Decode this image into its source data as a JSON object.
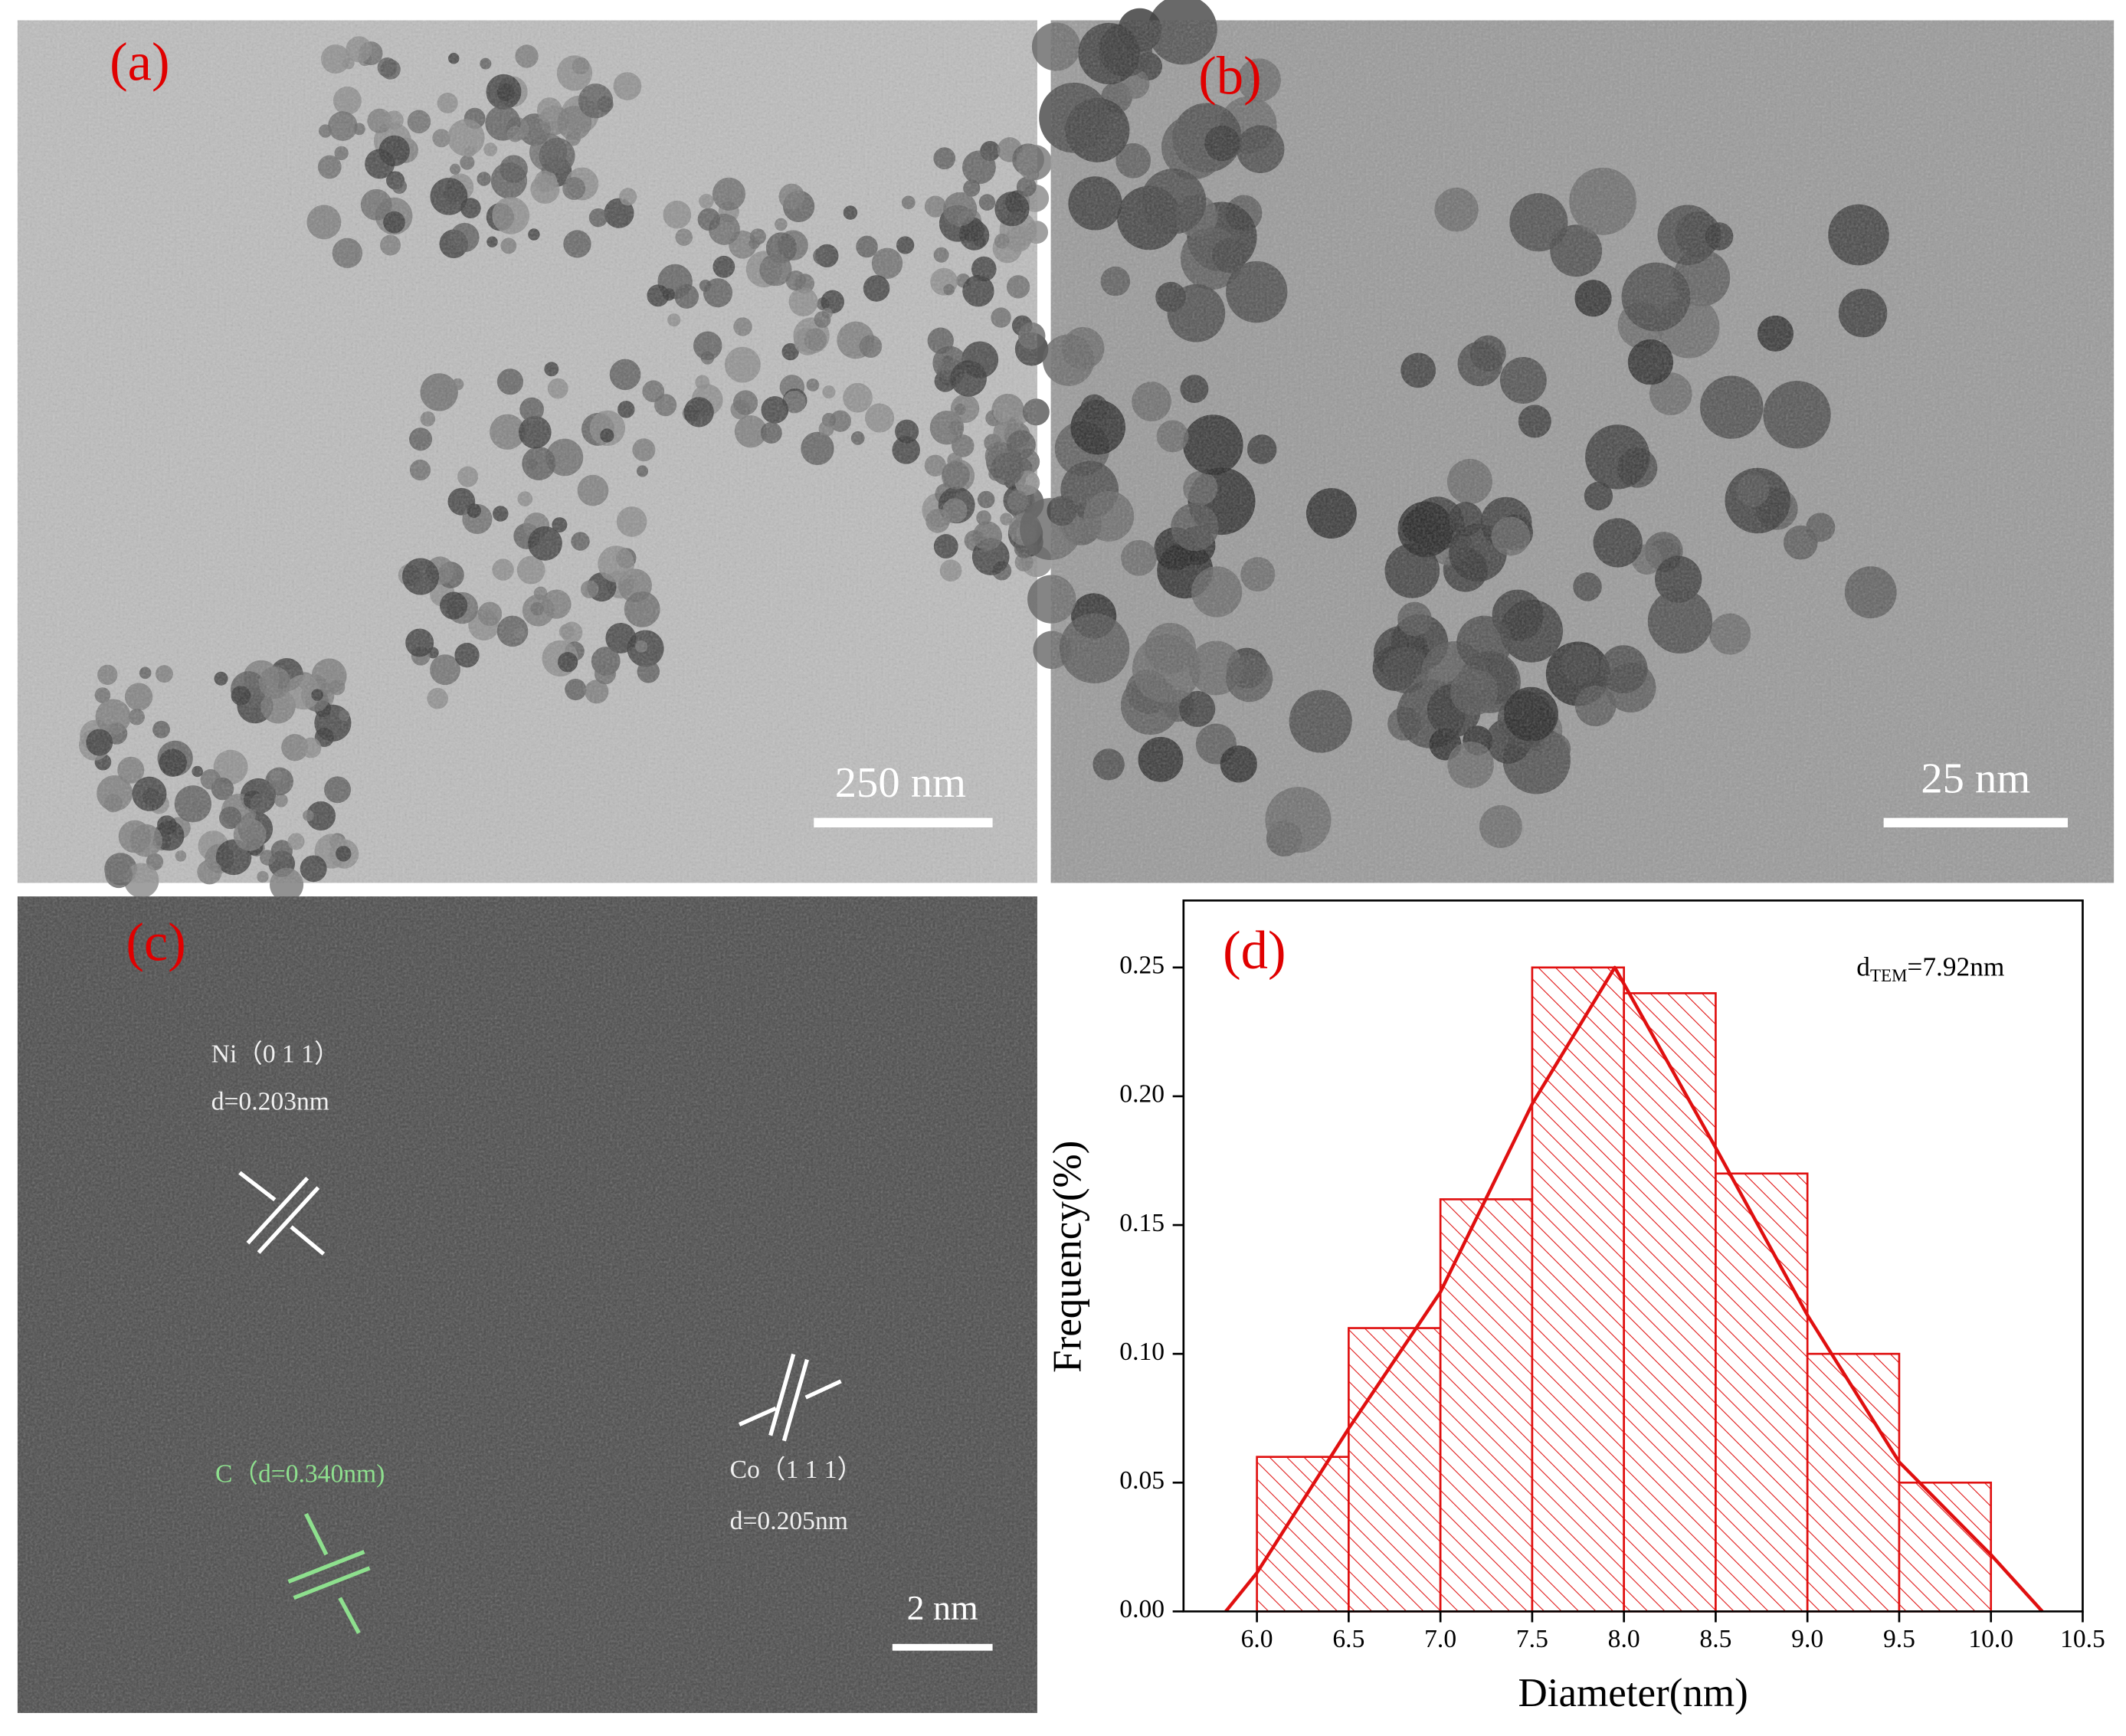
{
  "panels": {
    "a": {
      "label": "(a)",
      "scale_bar": "250 nm"
    },
    "b": {
      "label": "(b)",
      "scale_bar": "25 nm"
    },
    "c": {
      "label": "(c)",
      "scale_bar": "2 nm",
      "annotations": [
        "Ni（0 1 1）",
        "d=0.203nm",
        "C（d=0.340nm)",
        "Co（1 1 1）",
        "d=0.205nm"
      ]
    }
  },
  "chart_data": {
    "type": "histogram",
    "label": "(d)",
    "annotation": {
      "base": "d",
      "sub": "TEM",
      "rest": "=7.92nm"
    },
    "x_label": "Diameter(nm)",
    "y_label": "Frequency(%)",
    "bins": [
      6.0,
      6.5,
      7.0,
      7.5,
      8.0,
      8.5,
      9.0,
      9.5,
      10.0
    ],
    "values": [
      0.06,
      0.11,
      0.16,
      0.25,
      0.24,
      0.17,
      0.1,
      0.05
    ],
    "color": "#e01010",
    "fit": {
      "x": [
        5.83,
        6.0,
        6.5,
        7.0,
        7.5,
        7.95,
        8.5,
        9.0,
        9.5,
        10.0,
        10.28
      ],
      "values": [
        0,
        0.015,
        0.071,
        0.124,
        0.197,
        0.25,
        0.18,
        0.115,
        0.058,
        0.022,
        0
      ]
    },
    "xlim": [
      5.6,
      10.5
    ],
    "ylim": [
      0,
      0.276
    ],
    "xticks": [
      {
        "value": 6.0,
        "label": "6.0"
      },
      {
        "value": 6.5,
        "label": "6.5"
      },
      {
        "value": 7.0,
        "label": "7.0"
      },
      {
        "value": 7.5,
        "label": "7.5"
      },
      {
        "value": 8.0,
        "label": "8.0"
      },
      {
        "value": 8.5,
        "label": "8.5"
      },
      {
        "value": 9.0,
        "label": "9.0"
      },
      {
        "value": 9.5,
        "label": "9.5"
      },
      {
        "value": 10.0,
        "label": "10.0"
      },
      {
        "value": 10.5,
        "label": "10.5"
      }
    ],
    "yticks": [
      {
        "value": 0,
        "label": "0.00"
      },
      {
        "value": 0.05,
        "label": "0.05"
      },
      {
        "value": 0.1,
        "label": "0.10"
      },
      {
        "value": 0.15,
        "label": "0.15"
      },
      {
        "value": 0.2,
        "label": "0.20"
      },
      {
        "value": 0.25,
        "label": "0.25"
      }
    ]
  }
}
